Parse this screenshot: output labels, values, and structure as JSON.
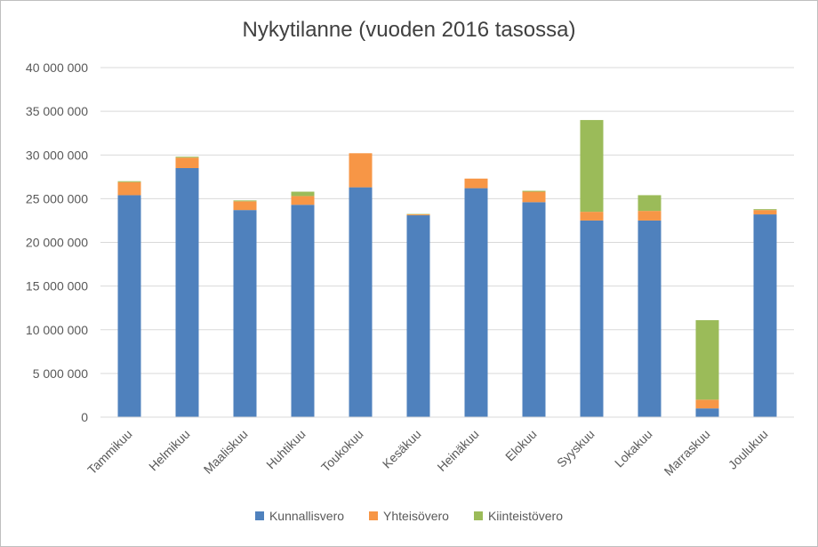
{
  "chart_data": {
    "type": "bar",
    "stacked": true,
    "title": "Nykytilanne (vuoden 2016 tasossa)",
    "xlabel": "",
    "ylabel": "",
    "categories": [
      "Tammikuu",
      "Helmikuu",
      "Maaliskuu",
      "Huhtikuu",
      "Toukokuu",
      "Kesäkuu",
      "Heinäkuu",
      "Elokuu",
      "Syyskuu",
      "Lokakuu",
      "Marraskuu",
      "Joulukuu"
    ],
    "series": [
      {
        "name": "Kunnallisvero",
        "color": "#4f81bd",
        "values": [
          25400000,
          28500000,
          23700000,
          24300000,
          26300000,
          23100000,
          26200000,
          24600000,
          22500000,
          22500000,
          1000000,
          23200000
        ]
      },
      {
        "name": "Yhteisövero",
        "color": "#f79646",
        "values": [
          1500000,
          1200000,
          1000000,
          1000000,
          3900000,
          100000,
          1100000,
          1200000,
          1000000,
          1100000,
          1000000,
          500000
        ]
      },
      {
        "name": "Kiinteistövero",
        "color": "#9bbb59",
        "values": [
          100000,
          100000,
          100000,
          500000,
          0,
          50000,
          0,
          100000,
          10500000,
          1800000,
          9100000,
          100000
        ]
      }
    ],
    "ylim": [
      0,
      40000000
    ],
    "yticks": [
      0,
      5000000,
      10000000,
      15000000,
      20000000,
      25000000,
      30000000,
      35000000,
      40000000
    ],
    "ytick_labels": [
      "0",
      "5 000 000",
      "10 000 000",
      "15 000 000",
      "20 000 000",
      "25 000 000",
      "30 000 000",
      "35 000 000",
      "40 000 000"
    ],
    "grid": true,
    "legend": "bottom"
  }
}
